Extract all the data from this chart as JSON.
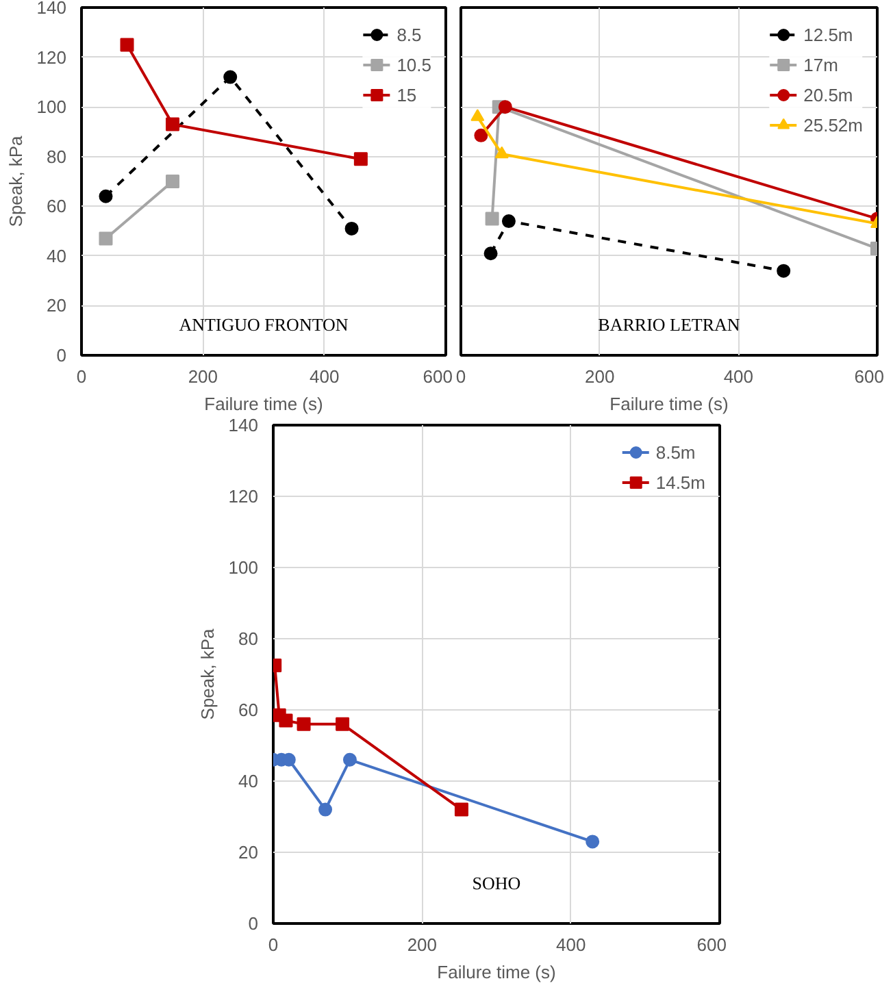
{
  "chart_data": [
    {
      "type": "line",
      "ylabel": "Speak, kPa",
      "xlabel": "Failure time (s)",
      "annotations": [
        "ANTIGUO FRONTON"
      ],
      "xlim": [
        0,
        600
      ],
      "ylim": [
        0,
        140
      ],
      "xticks": [
        0,
        200,
        400,
        600
      ],
      "yticks": [
        0,
        20,
        40,
        60,
        80,
        100,
        120,
        140
      ],
      "grid": true,
      "legend": "top right",
      "series": [
        {
          "name": "8.5",
          "color": "#000000",
          "line_style": "dashed",
          "marker": "circle",
          "x": [
            40,
            245,
            445
          ],
          "values": [
            64,
            112,
            51
          ]
        },
        {
          "name": "10.5",
          "color": "#a5a5a5",
          "line_style": "solid",
          "marker": "square",
          "x": [
            40,
            150
          ],
          "values": [
            47,
            70
          ]
        },
        {
          "name": "15",
          "color": "#c00000",
          "line_style": "solid",
          "marker": "square",
          "x": [
            75,
            150,
            460
          ],
          "values": [
            125,
            93,
            79
          ]
        }
      ]
    },
    {
      "type": "line",
      "xlabel": "Failure time (s)",
      "annotations": [
        "BARRIO LETRAN"
      ],
      "xlim": [
        0,
        600
      ],
      "ylim": [
        0,
        140
      ],
      "xticks": [
        0,
        200,
        400,
        600
      ],
      "yticks": [
        0,
        20,
        40,
        60,
        80,
        100,
        120,
        140
      ],
      "tick_labels": "x",
      "grid": true,
      "legend": "top right",
      "series": [
        {
          "name": "12.5m",
          "color": "#000000",
          "line_style": "dashed",
          "marker": "circle",
          "x": [
            43,
            69,
            465
          ],
          "values": [
            41,
            54,
            34
          ]
        },
        {
          "name": "17m",
          "color": "#a5a5a5",
          "line_style": "solid",
          "marker": "square",
          "x": [
            45,
            55,
            600
          ],
          "values": [
            55,
            100,
            43
          ]
        },
        {
          "name": "20.5m",
          "color": "#c00000",
          "line_style": "solid",
          "marker": "circle",
          "x": [
            29,
            64,
            600
          ],
          "values": [
            88.5,
            100,
            55
          ]
        },
        {
          "name": "25.52m",
          "color": "#ffc000",
          "line_style": "solid",
          "marker": "triangle",
          "x": [
            24,
            59,
            600
          ],
          "values": [
            96,
            81,
            53
          ]
        }
      ]
    },
    {
      "type": "line",
      "ylabel": "Speak, kPa",
      "xlabel": "Failure time (s)",
      "annotations": [
        "SOHO"
      ],
      "xlim": [
        0,
        600
      ],
      "ylim": [
        0,
        140
      ],
      "xticks": [
        0,
        200,
        400,
        600
      ],
      "yticks": [
        0,
        20,
        40,
        60,
        80,
        100,
        120,
        140
      ],
      "grid": true,
      "legend": "top right",
      "series": [
        {
          "name": "8.5m",
          "color": "#4472c4",
          "line_style": "solid",
          "marker": "circle",
          "x": [
            0,
            11,
            21,
            70,
            103,
            429
          ],
          "values": [
            46,
            46,
            46,
            32,
            46,
            23
          ]
        },
        {
          "name": "14.5m",
          "color": "#c00000",
          "line_style": "solid",
          "marker": "square",
          "x": [
            2,
            8,
            17,
            41,
            93,
            253
          ],
          "values": [
            72.5,
            58.5,
            57,
            56,
            56,
            32
          ]
        }
      ]
    }
  ]
}
